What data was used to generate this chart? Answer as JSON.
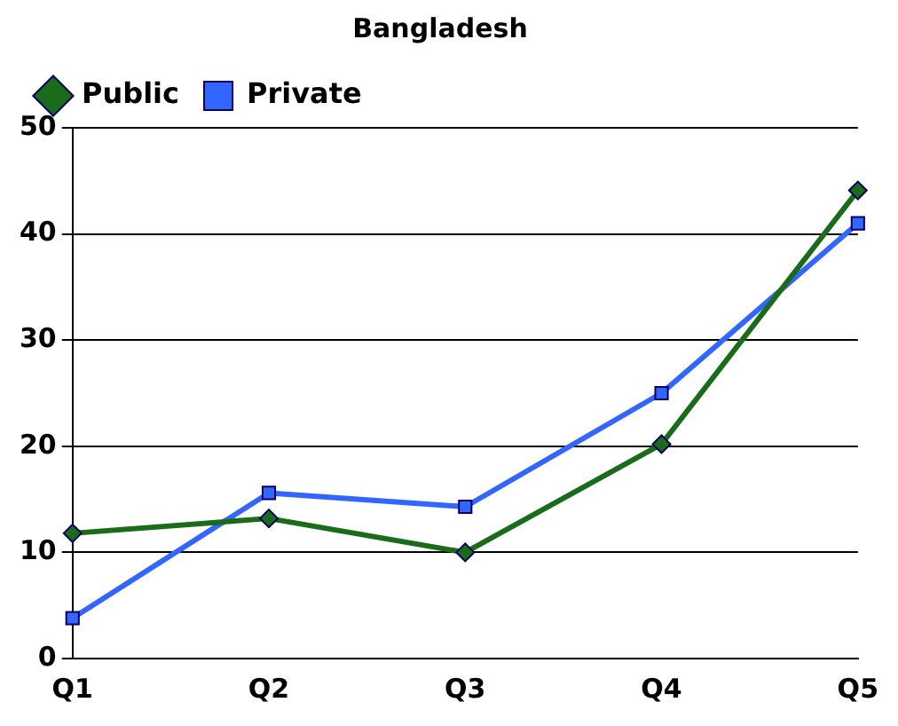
{
  "chart_data": {
    "type": "line",
    "title": "Bangladesh",
    "categories": [
      "Q1",
      "Q2",
      "Q3",
      "Q4",
      "Q5"
    ],
    "series": [
      {
        "name": "Public",
        "color": "#1a6b1a",
        "marker": "diamond",
        "values": [
          11.8,
          13.2,
          10,
          20.2,
          44.1
        ]
      },
      {
        "name": "Private",
        "color": "#3366ff",
        "marker": "square",
        "values": [
          3.8,
          15.6,
          14.3,
          25,
          41
        ]
      }
    ],
    "ylim": [
      0,
      50
    ],
    "yticks": [
      0,
      10,
      20,
      30,
      40,
      50
    ],
    "grid": "y",
    "legend": "top left",
    "line_style": "solid"
  }
}
